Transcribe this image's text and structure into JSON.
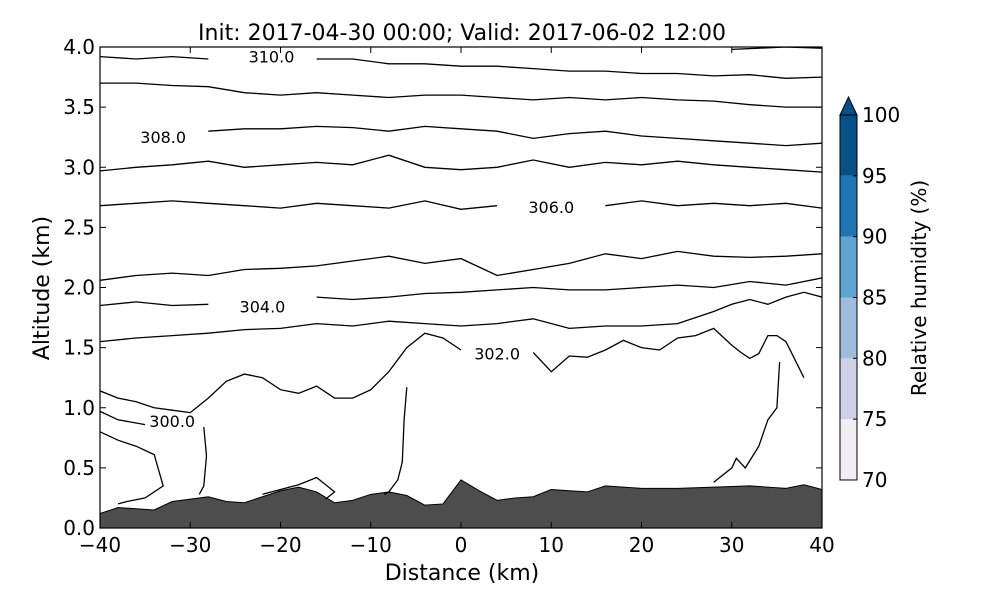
{
  "chart_data": {
    "type": "contour",
    "title": "Init: 2017-04-30 00:00; Valid: 2017-06-02 12:00",
    "xlabel": "Distance (km)",
    "ylabel": "Altitude (km)",
    "xlim": [
      -40,
      40
    ],
    "ylim": [
      0,
      4
    ],
    "x_ticks": [
      -40,
      -30,
      -20,
      -10,
      0,
      10,
      20,
      30,
      40
    ],
    "x_tick_labels": [
      "−40",
      "−30",
      "−20",
      "−10",
      "0",
      "10",
      "20",
      "30",
      "40"
    ],
    "y_ticks": [
      0,
      0.5,
      1,
      1.5,
      2,
      2.5,
      3,
      3.5,
      4
    ],
    "y_tick_labels": [
      "0.0",
      "0.5",
      "1.0",
      "1.5",
      "2.0",
      "2.5",
      "3.0",
      "3.5",
      "4.0"
    ],
    "grid": false,
    "terrain": {
      "color": "#4d4d4d",
      "x": [
        -40,
        -38,
        -36,
        -34,
        -32,
        -30,
        -28,
        -26,
        -24,
        -22,
        -20,
        -18,
        -16,
        -14,
        -12,
        -10,
        -8,
        -6,
        -4,
        -2,
        0,
        2,
        4,
        6,
        8,
        10,
        12,
        14,
        16,
        20,
        24,
        28,
        32,
        36,
        38,
        40
      ],
      "y": [
        0.12,
        0.17,
        0.16,
        0.15,
        0.22,
        0.24,
        0.26,
        0.22,
        0.21,
        0.26,
        0.31,
        0.34,
        0.3,
        0.21,
        0.23,
        0.28,
        0.3,
        0.27,
        0.19,
        0.2,
        0.4,
        0.31,
        0.23,
        0.25,
        0.26,
        0.32,
        0.31,
        0.3,
        0.35,
        0.33,
        0.33,
        0.34,
        0.35,
        0.33,
        0.36,
        0.32
      ]
    },
    "contour_levels_labeled": [
      "300.0",
      "302.0",
      "304.0",
      "306.0",
      "308.0",
      "310.0"
    ],
    "contours": [
      {
        "level": 300.0,
        "label": "300.0",
        "label_x": -32,
        "label_y": 0.89,
        "x": [
          -40,
          -38,
          -36,
          -34,
          -33,
          -35,
          -37,
          -38
        ],
        "y": [
          0.8,
          0.73,
          0.68,
          0.61,
          0.35,
          0.25,
          0.22,
          0.2
        ]
      },
      {
        "level": 300.0,
        "label": "",
        "x": [
          -40,
          -38,
          -35
        ],
        "y": [
          0.97,
          0.9,
          0.86
        ]
      },
      {
        "level": 300.0,
        "label": "",
        "x": [
          -28.5,
          -28.2,
          -28.5,
          -29
        ],
        "y": [
          0.84,
          0.6,
          0.35,
          0.28
        ]
      },
      {
        "level": 300.0,
        "label": "",
        "x": [
          -22,
          -20,
          -18,
          -16,
          -14,
          -15
        ],
        "y": [
          0.28,
          0.32,
          0.36,
          0.42,
          0.3,
          0.24
        ]
      },
      {
        "level": 300.0,
        "label": "",
        "x": [
          -6,
          -6.3,
          -6.5,
          -7,
          -8,
          -8.5
        ],
        "y": [
          1.17,
          0.9,
          0.55,
          0.4,
          0.3,
          0.28
        ]
      },
      {
        "level": 300.0,
        "label": "",
        "x": [
          28,
          30,
          30.5,
          31.5,
          33,
          34,
          35,
          35.3
        ],
        "y": [
          0.38,
          0.5,
          0.58,
          0.5,
          0.68,
          0.9,
          1.0,
          1.38
        ]
      },
      {
        "level": 302.0,
        "label": "302.0",
        "label_x": 4,
        "label_y": 1.45,
        "x": [
          -40,
          -38,
          -36,
          -34,
          -32,
          -30,
          -28,
          -26,
          -24,
          -22,
          -20,
          -18,
          -16,
          -14,
          -12,
          -10,
          -8,
          -6,
          -4,
          -2,
          0,
          2,
          4,
          6,
          8,
          10,
          12,
          14,
          16,
          18,
          20,
          22,
          24,
          26,
          28,
          30,
          31,
          32,
          33,
          34,
          35,
          36,
          37,
          38
        ],
        "y": [
          1.14,
          1.08,
          1.05,
          1.0,
          0.98,
          0.96,
          1.08,
          1.22,
          1.28,
          1.25,
          1.15,
          1.12,
          1.18,
          1.08,
          1.08,
          1.15,
          1.3,
          1.5,
          1.62,
          1.58,
          1.48,
          1.46,
          1.46,
          1.46,
          1.46,
          1.3,
          1.43,
          1.42,
          1.48,
          1.56,
          1.5,
          1.48,
          1.58,
          1.6,
          1.66,
          1.52,
          1.46,
          1.41,
          1.45,
          1.6,
          1.6,
          1.55,
          1.4,
          1.25
        ]
      },
      {
        "level": 303.0,
        "label": "",
        "x": [
          -40,
          -36,
          -32,
          -28,
          -24,
          -20,
          -16,
          -12,
          -8,
          -4,
          0,
          4,
          8,
          12,
          16,
          20,
          24,
          28,
          30,
          32,
          34,
          36,
          38,
          40
        ],
        "y": [
          1.55,
          1.58,
          1.6,
          1.62,
          1.65,
          1.66,
          1.7,
          1.68,
          1.72,
          1.7,
          1.68,
          1.7,
          1.74,
          1.66,
          1.68,
          1.68,
          1.7,
          1.8,
          1.86,
          1.9,
          1.86,
          1.92,
          1.96,
          1.92
        ]
      },
      {
        "level": 304.0,
        "label": "304.0",
        "label_x": -22,
        "label_y": 1.84,
        "x": [
          -40,
          -36,
          -32,
          -28,
          -24,
          -20,
          -16,
          -12,
          -8,
          -4,
          0,
          4,
          8,
          12,
          16,
          20,
          24,
          28,
          32,
          36,
          40
        ],
        "y": [
          1.85,
          1.88,
          1.85,
          1.86,
          1.88,
          1.87,
          1.92,
          1.9,
          1.92,
          1.95,
          1.96,
          1.98,
          2.0,
          1.98,
          1.98,
          2.0,
          2.02,
          2.0,
          2.05,
          2.02,
          2.08
        ]
      },
      {
        "level": 305.0,
        "label": "",
        "x": [
          -40,
          -36,
          -32,
          -28,
          -24,
          -20,
          -16,
          -12,
          -8,
          -4,
          0,
          4,
          8,
          12,
          16,
          20,
          24,
          28,
          32,
          36,
          40
        ],
        "y": [
          2.06,
          2.1,
          2.12,
          2.1,
          2.15,
          2.16,
          2.18,
          2.22,
          2.26,
          2.2,
          2.24,
          2.1,
          2.15,
          2.2,
          2.28,
          2.24,
          2.3,
          2.26,
          2.25,
          2.26,
          2.28
        ]
      },
      {
        "level": 306.0,
        "label": "306.0",
        "label_x": 10,
        "label_y": 2.67,
        "x": [
          -40,
          -36,
          -32,
          -28,
          -24,
          -20,
          -16,
          -12,
          -8,
          -4,
          0,
          4,
          8,
          12,
          16,
          20,
          24,
          28,
          32,
          36,
          40
        ],
        "y": [
          2.68,
          2.7,
          2.72,
          2.7,
          2.68,
          2.66,
          2.7,
          2.68,
          2.66,
          2.72,
          2.65,
          2.68,
          2.66,
          2.68,
          2.68,
          2.72,
          2.68,
          2.7,
          2.68,
          2.7,
          2.66
        ]
      },
      {
        "level": 307.0,
        "label": "",
        "x": [
          -40,
          -36,
          -32,
          -28,
          -24,
          -20,
          -16,
          -12,
          -8,
          -4,
          0,
          4,
          8,
          12,
          16,
          20,
          24,
          28,
          32,
          36,
          40
        ],
        "y": [
          2.97,
          3.0,
          3.02,
          3.05,
          3.0,
          3.02,
          3.04,
          3.02,
          3.1,
          3.0,
          2.98,
          3.0,
          3.06,
          3.0,
          3.04,
          3.02,
          3.05,
          3.02,
          3.0,
          2.98,
          2.96
        ]
      },
      {
        "level": 308.0,
        "label": "308.0",
        "label_x": -33,
        "label_y": 3.25,
        "x": [
          -40,
          -36,
          -32,
          -28,
          -24,
          -20,
          -16,
          -12,
          -8,
          -4,
          0,
          4,
          8,
          12,
          16,
          20,
          24,
          28,
          32,
          36,
          40
        ],
        "y": [
          3.33,
          3.3,
          3.27,
          3.3,
          3.32,
          3.32,
          3.34,
          3.33,
          3.3,
          3.34,
          3.32,
          3.3,
          3.24,
          3.28,
          3.3,
          3.26,
          3.24,
          3.22,
          3.2,
          3.18,
          3.2
        ]
      },
      {
        "level": 309.0,
        "label": "",
        "x": [
          -40,
          -36,
          -32,
          -28,
          -24,
          -20,
          -16,
          -12,
          -8,
          -4,
          0,
          4,
          8,
          12,
          16,
          20,
          24,
          28,
          32,
          36,
          40
        ],
        "y": [
          3.7,
          3.7,
          3.68,
          3.67,
          3.62,
          3.6,
          3.62,
          3.6,
          3.58,
          3.6,
          3.6,
          3.58,
          3.56,
          3.58,
          3.56,
          3.58,
          3.56,
          3.55,
          3.52,
          3.5,
          3.5
        ]
      },
      {
        "level": 310.0,
        "label": "310.0",
        "label_x": -21,
        "label_y": 3.92,
        "x": [
          -40,
          -36,
          -32,
          -28,
          -24,
          -20,
          -16,
          -12,
          -8,
          -4,
          0,
          4,
          8,
          12,
          16,
          20,
          24,
          28,
          32,
          36,
          40
        ],
        "y": [
          3.92,
          3.9,
          3.92,
          3.9,
          3.89,
          3.9,
          3.9,
          3.9,
          3.86,
          3.86,
          3.84,
          3.84,
          3.82,
          3.8,
          3.8,
          3.78,
          3.78,
          3.76,
          3.77,
          3.74,
          3.75
        ]
      },
      {
        "level": 311.0,
        "label": "",
        "x": [
          30,
          33,
          36,
          40
        ],
        "y": [
          3.98,
          3.99,
          4.0,
          3.99
        ]
      }
    ],
    "colorbar": {
      "label": "Relative humidity (%)",
      "levels": [
        70,
        75,
        80,
        85,
        90,
        95,
        100
      ],
      "tick_labels": [
        "70",
        "75",
        "80",
        "85",
        "90",
        "95",
        "100"
      ],
      "colors": [
        "#f2eef6",
        "#cfd1e7",
        "#9fbcdd",
        "#5ea3d1",
        "#1f74b4",
        "#085187"
      ],
      "extend_color": "#085187",
      "extend": "max"
    }
  }
}
